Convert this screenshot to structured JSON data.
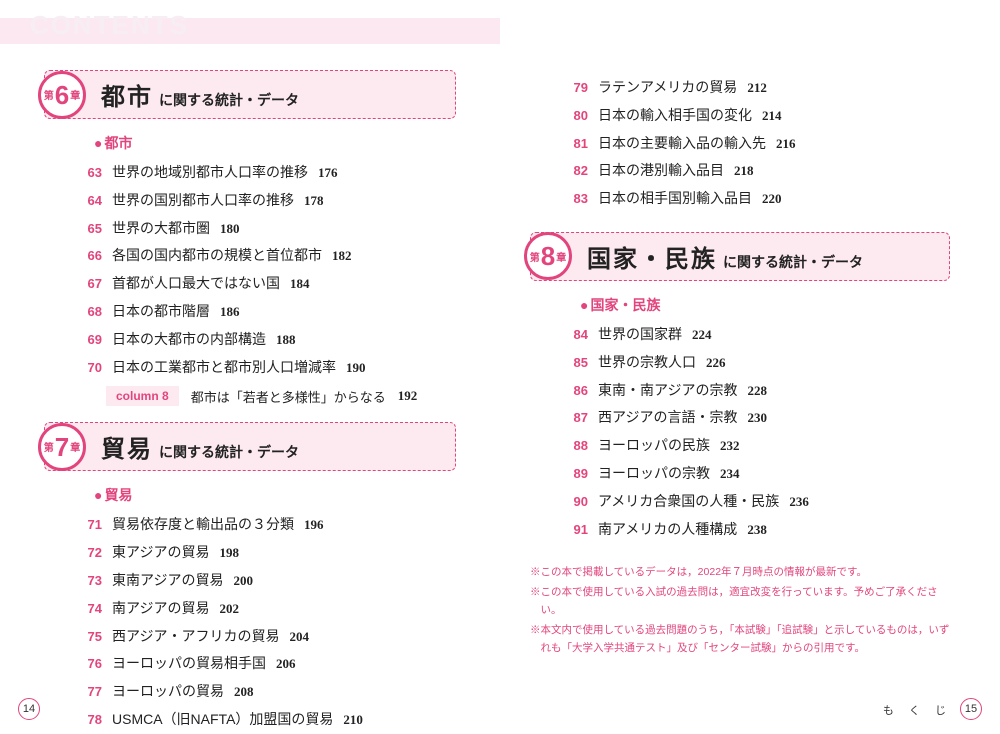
{
  "header": {
    "contents_label": "CONTENTS"
  },
  "colors": {
    "accent": "#e2457d",
    "band_bg": "#fce8f0",
    "box_bg": "#fdeaf1",
    "text": "#222222",
    "bg": "#ffffff"
  },
  "left": {
    "chapter6": {
      "prefix": "第",
      "number": "6",
      "suffix": "章",
      "title_main": "都市",
      "title_sub": "に関する統計・データ",
      "section_heading": "都市",
      "entries": [
        {
          "index": "63",
          "title": "世界の地域別都市人口率の推移",
          "page": "176"
        },
        {
          "index": "64",
          "title": "世界の国別都市人口率の推移",
          "page": "178"
        },
        {
          "index": "65",
          "title": "世界の大都市圏",
          "page": "180"
        },
        {
          "index": "66",
          "title": "各国の国内都市の規模と首位都市",
          "page": "182"
        },
        {
          "index": "67",
          "title": "首都が人口最大ではない国",
          "page": "184"
        },
        {
          "index": "68",
          "title": "日本の都市階層",
          "page": "186"
        },
        {
          "index": "69",
          "title": "日本の大都市の内部構造",
          "page": "188"
        },
        {
          "index": "70",
          "title": "日本の工業都市と都市別人口増減率",
          "page": "190"
        }
      ],
      "column": {
        "label": "column 8",
        "text": "都市は「若者と多様性」からなる",
        "page": "192"
      }
    },
    "chapter7": {
      "prefix": "第",
      "number": "7",
      "suffix": "章",
      "title_main": "貿易",
      "title_sub": "に関する統計・データ",
      "section_heading": "貿易",
      "entries": [
        {
          "index": "71",
          "title": "貿易依存度と輸出品の３分類",
          "page": "196"
        },
        {
          "index": "72",
          "title": "東アジアの貿易",
          "page": "198"
        },
        {
          "index": "73",
          "title": "東南アジアの貿易",
          "page": "200"
        },
        {
          "index": "74",
          "title": "南アジアの貿易",
          "page": "202"
        },
        {
          "index": "75",
          "title": "西アジア・アフリカの貿易",
          "page": "204"
        },
        {
          "index": "76",
          "title": "ヨーロッパの貿易相手国",
          "page": "206"
        },
        {
          "index": "77",
          "title": "ヨーロッパの貿易",
          "page": "208"
        },
        {
          "index": "78",
          "title": "USMCA（旧NAFTA）加盟国の貿易",
          "page": "210"
        }
      ]
    },
    "page_number": "14"
  },
  "right": {
    "top_entries": [
      {
        "index": "79",
        "title": "ラテンアメリカの貿易",
        "page": "212"
      },
      {
        "index": "80",
        "title": "日本の輸入相手国の変化",
        "page": "214"
      },
      {
        "index": "81",
        "title": "日本の主要輸入品の輸入先",
        "page": "216"
      },
      {
        "index": "82",
        "title": "日本の港別輸入品目",
        "page": "218"
      },
      {
        "index": "83",
        "title": "日本の相手国別輸入品目",
        "page": "220"
      }
    ],
    "chapter8": {
      "prefix": "第",
      "number": "8",
      "suffix": "章",
      "title_main": "国家・民族",
      "title_sub": "に関する統計・データ",
      "section_heading": "国家・民族",
      "entries": [
        {
          "index": "84",
          "title": "世界の国家群",
          "page": "224"
        },
        {
          "index": "85",
          "title": "世界の宗教人口",
          "page": "226"
        },
        {
          "index": "86",
          "title": "東南・南アジアの宗教",
          "page": "228"
        },
        {
          "index": "87",
          "title": "西アジアの言語・宗教",
          "page": "230"
        },
        {
          "index": "88",
          "title": "ヨーロッパの民族",
          "page": "232"
        },
        {
          "index": "89",
          "title": "ヨーロッパの宗教",
          "page": "234"
        },
        {
          "index": "90",
          "title": "アメリカ合衆国の人種・民族",
          "page": "236"
        },
        {
          "index": "91",
          "title": "南アメリカの人種構成",
          "page": "238"
        }
      ]
    },
    "notes": [
      "※この本で掲載しているデータは，2022年７月時点の情報が最新です。",
      "※この本で使用している入試の過去問は，適宜改変を行っています。予めご了承ください。",
      "※本文内で使用している過去問題のうち，「本試験」「追試験」と示しているものは，いずれも「大学入学共通テスト」及び「センター試験」からの引用です。"
    ],
    "mokuji_label": "も く じ",
    "page_number": "15"
  }
}
